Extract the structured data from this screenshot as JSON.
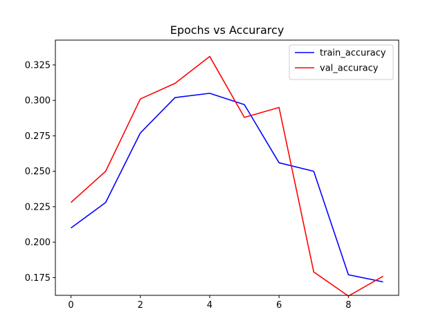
{
  "chart_data": {
    "type": "line",
    "title": "Epochs vs Accurarcy",
    "xlabel": "",
    "ylabel": "",
    "x": [
      0,
      1,
      2,
      3,
      4,
      5,
      6,
      7,
      8,
      9
    ],
    "xlim": [
      -0.45,
      9.45
    ],
    "ylim": [
      0.1625,
      0.3425
    ],
    "xticks": [
      0,
      2,
      4,
      6,
      8
    ],
    "yticks": [
      0.175,
      0.2,
      0.225,
      0.25,
      0.275,
      0.3,
      0.325
    ],
    "ytick_labels": [
      "0.175",
      "0.200",
      "0.225",
      "0.250",
      "0.275",
      "0.300",
      "0.325"
    ],
    "grid": false,
    "legend_position": "upper right",
    "series": [
      {
        "name": "train_accuracy",
        "color": "#0000ff",
        "values": [
          0.21,
          0.228,
          0.277,
          0.302,
          0.305,
          0.297,
          0.256,
          0.25,
          0.177,
          0.172
        ]
      },
      {
        "name": "val_accuracy",
        "color": "#ff0000",
        "values": [
          0.228,
          0.25,
          0.301,
          0.312,
          0.331,
          0.288,
          0.295,
          0.179,
          0.162,
          0.176
        ]
      }
    ]
  }
}
